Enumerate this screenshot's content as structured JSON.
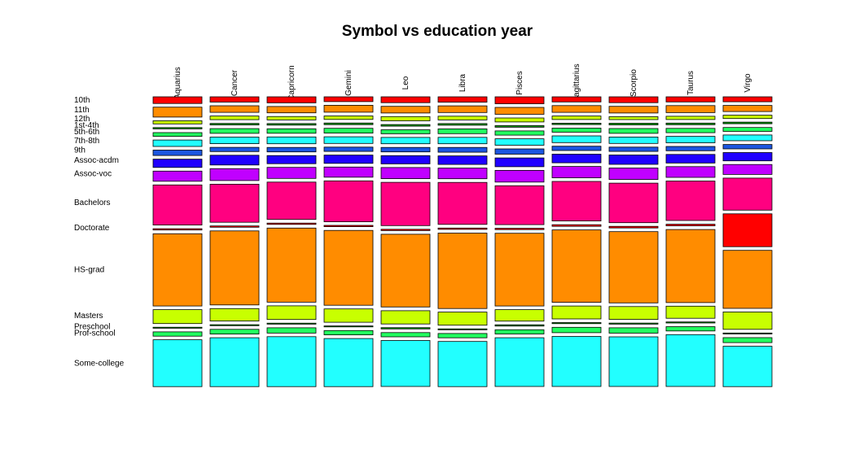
{
  "chart_data": {
    "type": "mosaic",
    "title": "Symbol vs education year",
    "xlabel": "",
    "ylabel": "",
    "columns": [
      "Aquarius",
      "Cancer",
      "Capricorn",
      "Gemini",
      "Leo",
      "Libra",
      "Pisces",
      "Sagittarius",
      "Scorpio",
      "Taurus",
      "Virgo"
    ],
    "categories": [
      "10th",
      "11th",
      "12th",
      "1st-4th",
      "5th-6th",
      "7th-8th",
      "9th",
      "Assoc-acdm",
      "Assoc-voc",
      "Bachelors",
      "Doctorate",
      "HS-grad",
      "Masters",
      "Preschool",
      "Prof-school",
      "Some-college"
    ],
    "colors": [
      "#ff0000",
      "#ff8c00",
      "#c8ff00",
      "#00a000",
      "#22ff60",
      "#22ffff",
      "#1c56e0",
      "#2000ff",
      "#c000ff",
      "#ff0080",
      "#ff0000",
      "#ff8c00",
      "#c8ff00",
      "#00a000",
      "#22ff60",
      "#22ffff"
    ],
    "series": [
      {
        "name": "Aquarius",
        "values": [
          2.5,
          3.7,
          1.2,
          0.5,
          1.4,
          2.4,
          2.0,
          3.1,
          3.8,
          15.0,
          0.5,
          27.0,
          5.2,
          0.3,
          1.6,
          17.5
        ]
      },
      {
        "name": "Cancer",
        "values": [
          2.0,
          2.5,
          1.4,
          0.6,
          1.8,
          2.5,
          1.6,
          3.7,
          4.5,
          14.4,
          0.5,
          28.0,
          4.7,
          0.3,
          1.8,
          18.5
        ]
      },
      {
        "name": "Capricorn",
        "values": [
          2.3,
          2.4,
          1.3,
          0.6,
          1.7,
          2.6,
          1.7,
          3.1,
          4.2,
          14.2,
          0.5,
          28.2,
          5.2,
          0.3,
          2.0,
          19.0
        ]
      },
      {
        "name": "Gemini",
        "values": [
          1.8,
          2.6,
          1.3,
          0.6,
          1.8,
          2.5,
          1.6,
          3.1,
          3.8,
          15.3,
          0.5,
          28.0,
          5.0,
          0.3,
          1.6,
          18.0
        ]
      },
      {
        "name": "Leo",
        "values": [
          2.2,
          2.5,
          1.6,
          0.6,
          1.5,
          2.4,
          1.7,
          3.1,
          4.2,
          16.3,
          0.5,
          27.4,
          5.0,
          0.5,
          1.6,
          17.3
        ]
      },
      {
        "name": "Libra",
        "values": [
          2.0,
          2.5,
          1.4,
          0.6,
          1.8,
          2.4,
          1.8,
          3.2,
          4.0,
          15.7,
          0.5,
          28.2,
          4.9,
          0.3,
          1.6,
          16.9
        ]
      },
      {
        "name": "Pisces",
        "values": [
          2.6,
          2.6,
          1.5,
          0.6,
          1.6,
          2.4,
          2.0,
          3.3,
          4.4,
          14.6,
          0.5,
          27.3,
          4.3,
          0.5,
          1.6,
          18.3
        ]
      },
      {
        "name": "Sagittarius",
        "values": [
          1.9,
          2.5,
          1.3,
          0.5,
          1.5,
          2.5,
          1.6,
          3.2,
          4.2,
          14.7,
          0.6,
          26.9,
          4.8,
          0.4,
          2.0,
          18.6
        ]
      },
      {
        "name": "Scorpio",
        "values": [
          2.2,
          2.5,
          1.1,
          0.6,
          1.8,
          2.4,
          1.6,
          3.5,
          4.3,
          14.8,
          0.6,
          26.7,
          4.8,
          0.4,
          2.0,
          18.6
        ]
      },
      {
        "name": "Taurus",
        "values": [
          1.9,
          2.6,
          1.2,
          0.6,
          1.6,
          2.4,
          1.6,
          3.2,
          4.0,
          14.7,
          0.6,
          27.2,
          4.5,
          0.4,
          1.6,
          19.3
        ]
      },
      {
        "name": "Virgo",
        "values": [
          1.8,
          2.2,
          1.2,
          0.6,
          1.4,
          2.1,
          1.6,
          3.0,
          3.6,
          11.6,
          11.9,
          21.0,
          6.3,
          0.3,
          1.8,
          14.6
        ]
      }
    ]
  }
}
